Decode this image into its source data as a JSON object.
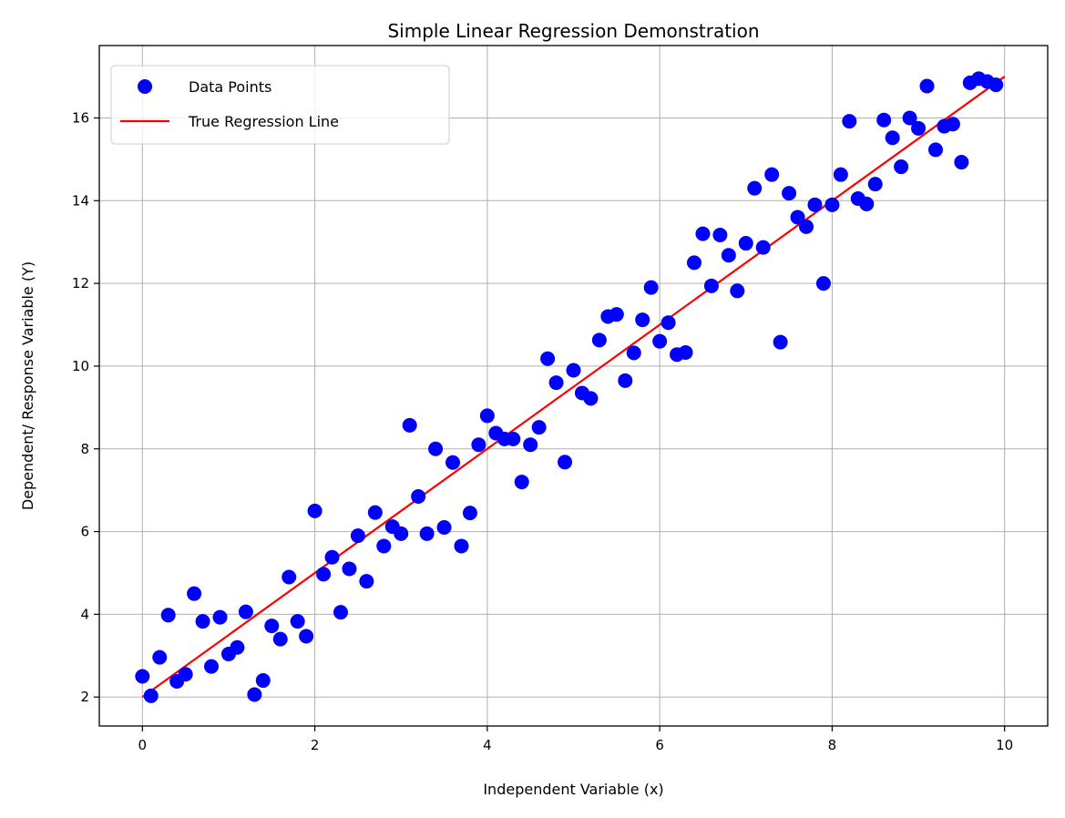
{
  "chart_data": {
    "type": "scatter",
    "title": "Simple Linear Regression Demonstration",
    "xlabel": "Independent Variable (x)",
    "ylabel": "Dependent/ Response Variable (Y)",
    "xlim": [
      -0.5,
      10.5
    ],
    "ylim": [
      1.3,
      17.75
    ],
    "xticks": [
      0,
      2,
      4,
      6,
      8,
      10
    ],
    "yticks": [
      2,
      4,
      6,
      8,
      10,
      12,
      14,
      16
    ],
    "grid": true,
    "legend_position": "upper-left",
    "series": [
      {
        "name": "Data Points",
        "kind": "scatter",
        "color": "#0000ff",
        "points": [
          [
            0.0,
            2.5
          ],
          [
            0.1,
            2.03
          ],
          [
            0.2,
            2.96
          ],
          [
            0.3,
            3.98
          ],
          [
            0.4,
            2.38
          ],
          [
            0.5,
            2.55
          ],
          [
            0.6,
            4.5
          ],
          [
            0.7,
            3.83
          ],
          [
            0.8,
            2.74
          ],
          [
            0.9,
            3.93
          ],
          [
            1.0,
            3.04
          ],
          [
            1.1,
            3.2
          ],
          [
            1.2,
            4.06
          ],
          [
            1.3,
            2.06
          ],
          [
            1.4,
            2.4
          ],
          [
            1.5,
            3.72
          ],
          [
            1.6,
            3.4
          ],
          [
            1.7,
            4.9
          ],
          [
            1.8,
            3.83
          ],
          [
            1.9,
            3.47
          ],
          [
            2.0,
            6.5
          ],
          [
            2.1,
            4.97
          ],
          [
            2.2,
            5.38
          ],
          [
            2.3,
            4.05
          ],
          [
            2.4,
            5.1
          ],
          [
            2.5,
            5.9
          ],
          [
            2.6,
            4.8
          ],
          [
            2.7,
            6.46
          ],
          [
            2.8,
            5.65
          ],
          [
            2.9,
            6.12
          ],
          [
            3.0,
            5.95
          ],
          [
            3.1,
            8.57
          ],
          [
            3.2,
            6.85
          ],
          [
            3.3,
            5.95
          ],
          [
            3.4,
            8.0
          ],
          [
            3.5,
            6.1
          ],
          [
            3.6,
            7.67
          ],
          [
            3.7,
            5.65
          ],
          [
            3.8,
            6.45
          ],
          [
            3.9,
            8.1
          ],
          [
            4.0,
            8.8
          ],
          [
            4.1,
            8.38
          ],
          [
            4.2,
            8.24
          ],
          [
            4.3,
            8.24
          ],
          [
            4.4,
            7.2
          ],
          [
            4.5,
            8.1
          ],
          [
            4.6,
            8.52
          ],
          [
            4.7,
            10.18
          ],
          [
            4.8,
            9.6
          ],
          [
            4.9,
            7.68
          ],
          [
            5.0,
            9.9
          ],
          [
            5.1,
            9.35
          ],
          [
            5.2,
            9.22
          ],
          [
            5.3,
            10.63
          ],
          [
            5.4,
            11.2
          ],
          [
            5.5,
            11.25
          ],
          [
            5.6,
            9.65
          ],
          [
            5.7,
            10.32
          ],
          [
            5.8,
            11.12
          ],
          [
            5.9,
            11.9
          ],
          [
            6.0,
            10.6
          ],
          [
            6.1,
            11.05
          ],
          [
            6.2,
            10.28
          ],
          [
            6.3,
            10.33
          ],
          [
            6.4,
            12.5
          ],
          [
            6.5,
            13.2
          ],
          [
            6.6,
            11.94
          ],
          [
            6.7,
            13.17
          ],
          [
            6.8,
            12.68
          ],
          [
            6.9,
            11.82
          ],
          [
            7.0,
            12.97
          ],
          [
            7.1,
            14.3
          ],
          [
            7.2,
            12.87
          ],
          [
            7.3,
            14.63
          ],
          [
            7.4,
            10.58
          ],
          [
            7.5,
            14.18
          ],
          [
            7.6,
            13.6
          ],
          [
            7.7,
            13.37
          ],
          [
            7.8,
            13.9
          ],
          [
            7.9,
            12.0
          ],
          [
            8.0,
            13.9
          ],
          [
            8.1,
            14.63
          ],
          [
            8.2,
            15.92
          ],
          [
            8.3,
            14.05
          ],
          [
            8.4,
            13.92
          ],
          [
            8.5,
            14.4
          ],
          [
            8.6,
            15.95
          ],
          [
            8.7,
            15.52
          ],
          [
            8.8,
            14.82
          ],
          [
            8.9,
            16.0
          ],
          [
            9.0,
            15.75
          ],
          [
            9.1,
            16.77
          ],
          [
            9.2,
            15.23
          ],
          [
            9.3,
            15.8
          ],
          [
            9.4,
            15.85
          ],
          [
            9.5,
            14.93
          ],
          [
            9.6,
            16.85
          ],
          [
            9.7,
            16.95
          ],
          [
            9.8,
            16.88
          ],
          [
            9.9,
            16.8
          ]
        ]
      },
      {
        "name": "True Regression Line",
        "kind": "line",
        "color": "#ff0000",
        "points": [
          [
            0,
            2
          ],
          [
            10,
            17
          ]
        ]
      }
    ]
  }
}
